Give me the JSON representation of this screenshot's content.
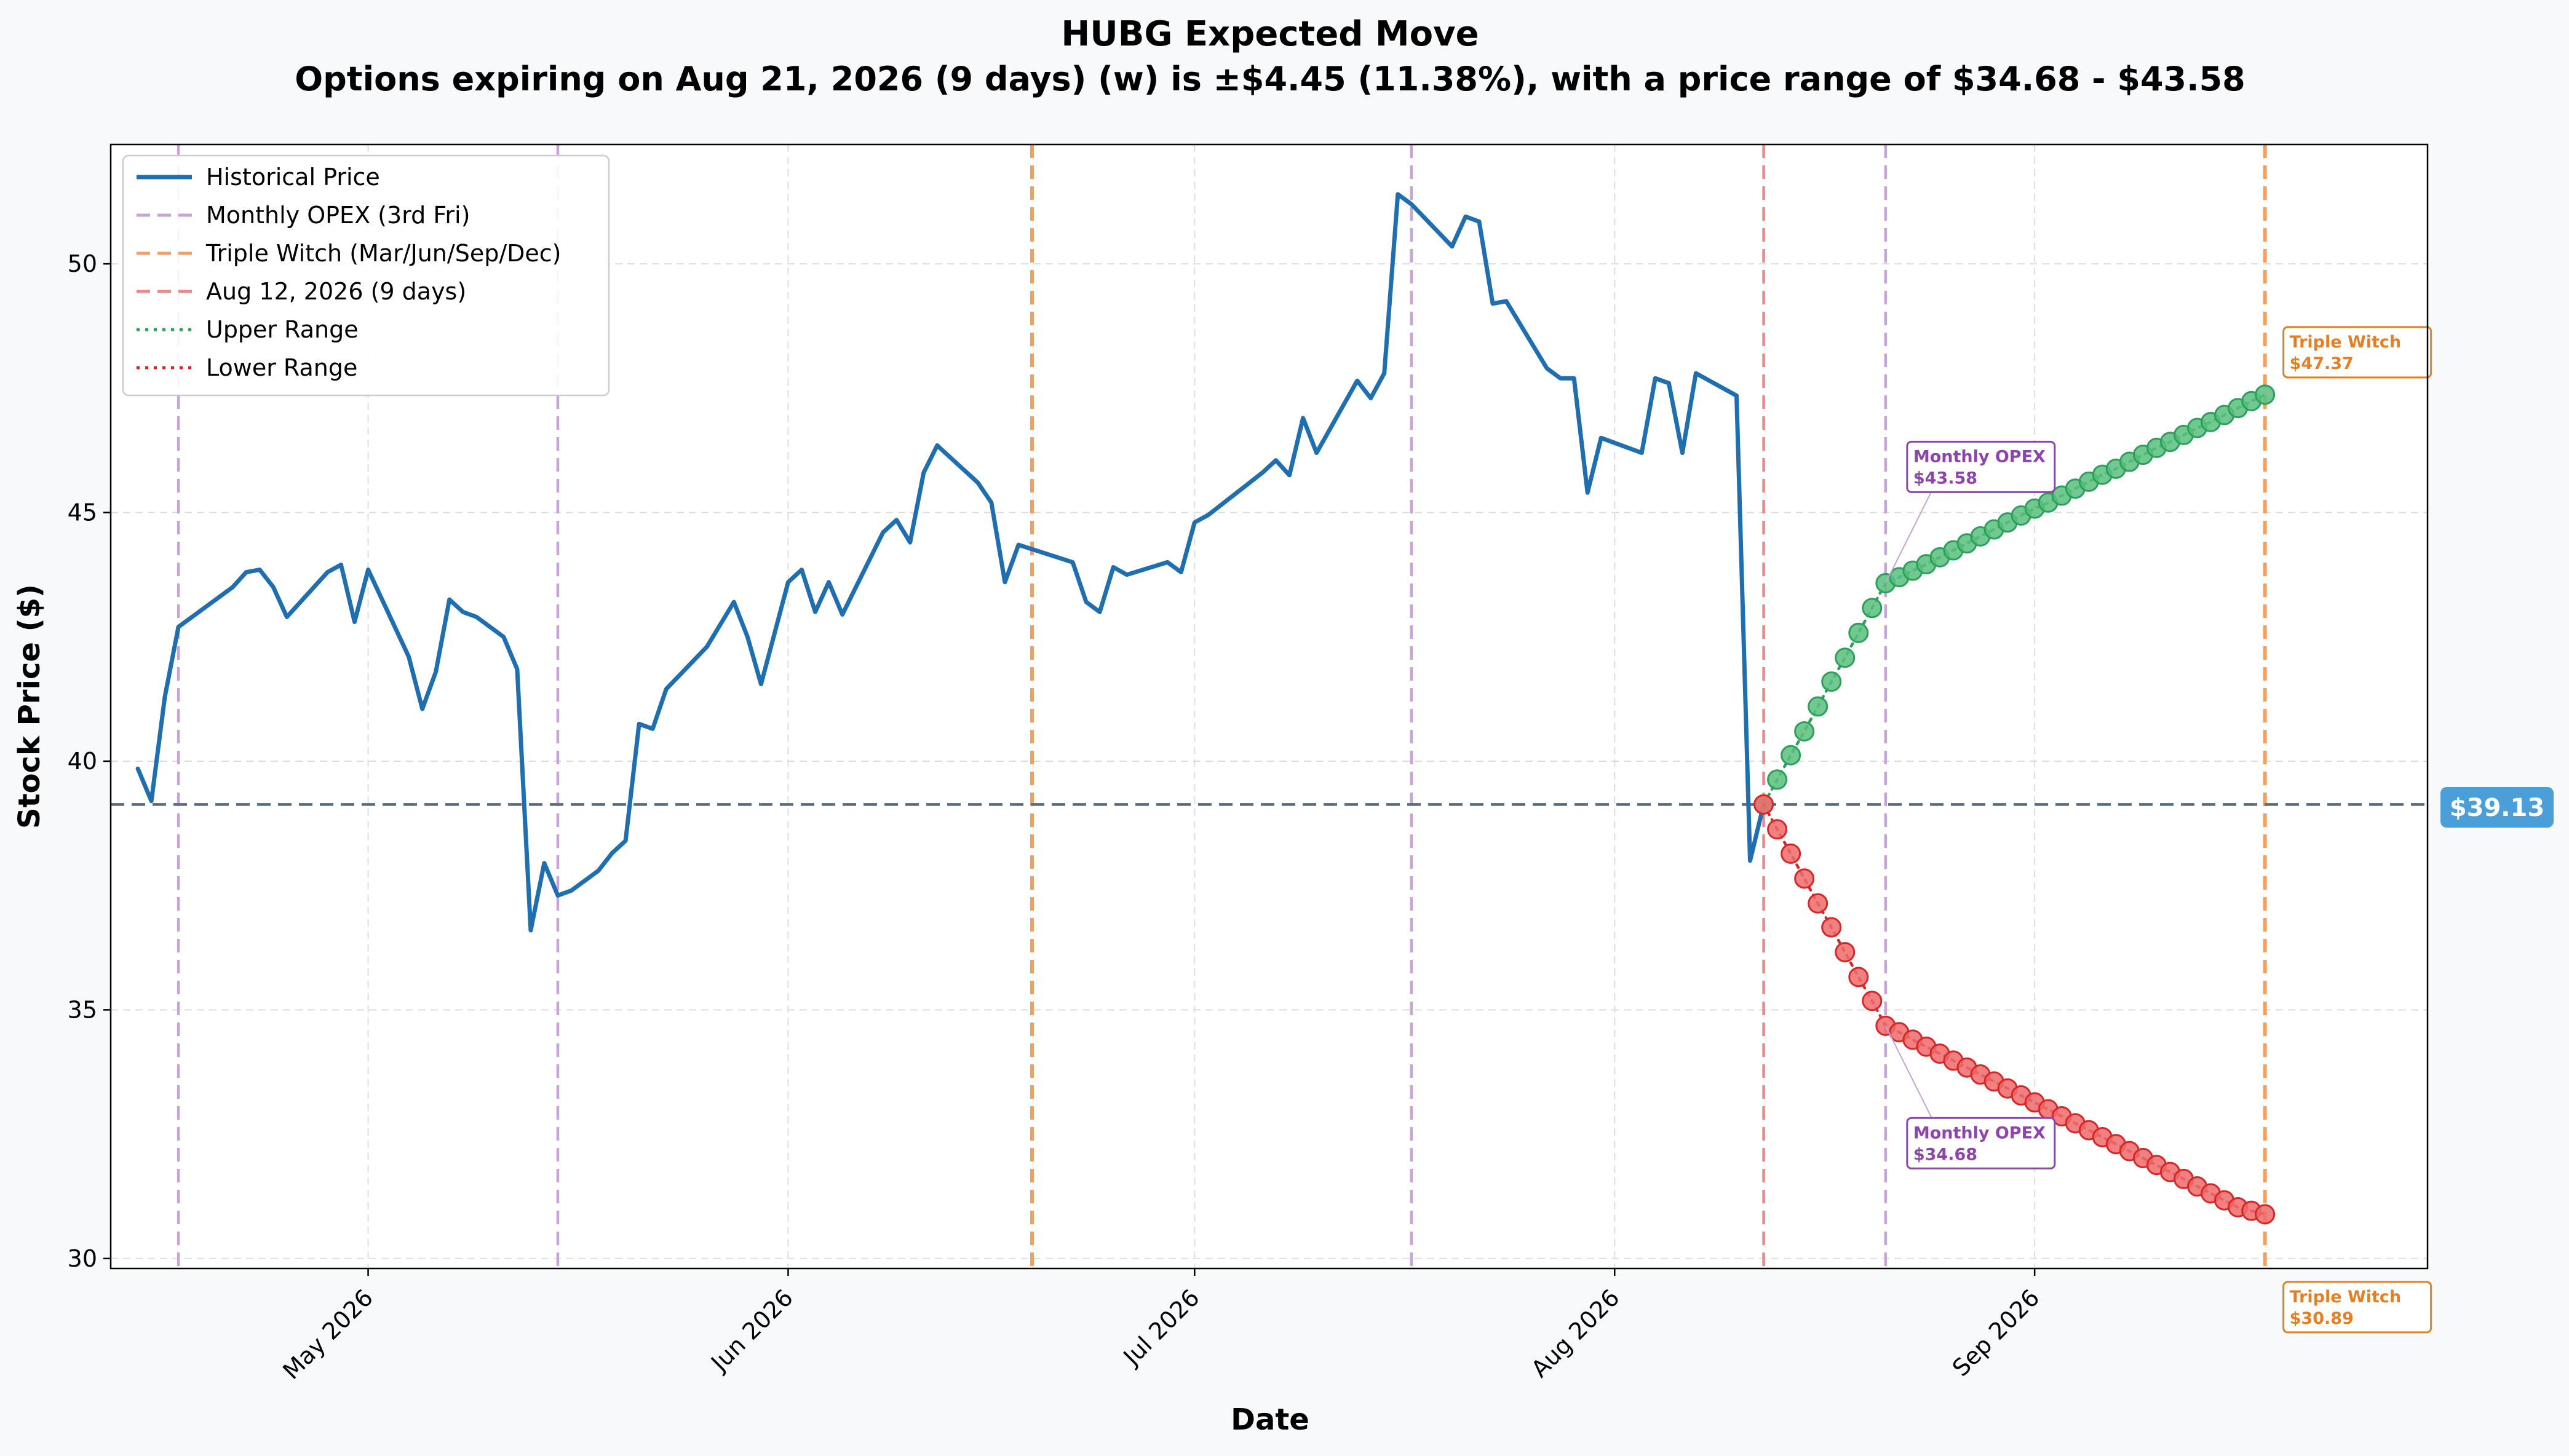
{
  "chart_data": {
    "type": "line",
    "title": "HUBG Expected Move",
    "subtitle": "Options expiring on Aug 21, 2026 (9 days) (w) is ±$4.45 (11.38%), with a price range of $34.68 - $43.58",
    "xlabel": "Date",
    "ylabel": "Stock Price ($)",
    "xlim": [
      "2026-04-12",
      "2026-09-30"
    ],
    "ylim": [
      29.8,
      52.4
    ],
    "grid": true,
    "legend_position": "top-left",
    "x_ticks": [
      {
        "date": "2026-05-01",
        "label": "May 2026"
      },
      {
        "date": "2026-06-01",
        "label": "Jun 2026"
      },
      {
        "date": "2026-07-01",
        "label": "Jul 2026"
      },
      {
        "date": "2026-08-01",
        "label": "Aug 2026"
      },
      {
        "date": "2026-09-01",
        "label": "Sep 2026"
      }
    ],
    "y_ticks": [
      30,
      35,
      40,
      45,
      50
    ],
    "current_price": {
      "value": 39.13,
      "label": "$39.13",
      "color": "#5a6b7d"
    },
    "vertical_lines": [
      {
        "date": "2026-04-17",
        "kind": "monthly",
        "color": "#c8a2d8"
      },
      {
        "date": "2026-05-15",
        "kind": "monthly",
        "color": "#c8a2d8"
      },
      {
        "date": "2026-06-19",
        "kind": "triple",
        "color": "#f0a060"
      },
      {
        "date": "2026-07-17",
        "kind": "monthly",
        "color": "#c8a2d8"
      },
      {
        "date": "2026-08-12",
        "kind": "today",
        "color": "#ee8888"
      },
      {
        "date": "2026-08-21",
        "kind": "monthly",
        "color": "#c8a2d8"
      },
      {
        "date": "2026-09-18",
        "kind": "triple",
        "color": "#f0a060"
      }
    ],
    "series": [
      {
        "name": "Historical Price",
        "style": "solid",
        "color": "#1f6fb0",
        "points": [
          [
            "2026-04-14",
            39.85
          ],
          [
            "2026-04-15",
            39.2
          ],
          [
            "2026-04-16",
            41.3
          ],
          [
            "2026-04-17",
            42.7
          ],
          [
            "2026-04-21",
            43.5
          ],
          [
            "2026-04-22",
            43.8
          ],
          [
            "2026-04-23",
            43.85
          ],
          [
            "2026-04-24",
            43.5
          ],
          [
            "2026-04-25",
            42.9
          ],
          [
            "2026-04-28",
            43.8
          ],
          [
            "2026-04-29",
            43.95
          ],
          [
            "2026-04-30",
            42.8
          ],
          [
            "2026-05-01",
            43.85
          ],
          [
            "2026-05-04",
            42.1
          ],
          [
            "2026-05-05",
            41.05
          ],
          [
            "2026-05-06",
            41.8
          ],
          [
            "2026-05-07",
            43.25
          ],
          [
            "2026-05-08",
            43.0
          ],
          [
            "2026-05-09",
            42.9
          ],
          [
            "2026-05-11",
            42.5
          ],
          [
            "2026-05-12",
            41.85
          ],
          [
            "2026-05-13",
            36.6
          ],
          [
            "2026-05-14",
            37.95
          ],
          [
            "2026-05-15",
            37.3
          ],
          [
            "2026-05-16",
            37.4
          ],
          [
            "2026-05-18",
            37.8
          ],
          [
            "2026-05-19",
            38.15
          ],
          [
            "2026-05-20",
            38.4
          ],
          [
            "2026-05-21",
            40.75
          ],
          [
            "2026-05-22",
            40.65
          ],
          [
            "2026-05-23",
            41.45
          ],
          [
            "2026-05-26",
            42.3
          ],
          [
            "2026-05-27",
            42.75
          ],
          [
            "2026-05-28",
            43.2
          ],
          [
            "2026-05-29",
            42.5
          ],
          [
            "2026-05-30",
            41.55
          ],
          [
            "2026-06-01",
            43.6
          ],
          [
            "2026-06-02",
            43.85
          ],
          [
            "2026-06-03",
            43.0
          ],
          [
            "2026-06-04",
            43.6
          ],
          [
            "2026-06-05",
            42.95
          ],
          [
            "2026-06-08",
            44.6
          ],
          [
            "2026-06-09",
            44.85
          ],
          [
            "2026-06-10",
            44.4
          ],
          [
            "2026-06-11",
            45.8
          ],
          [
            "2026-06-12",
            46.35
          ],
          [
            "2026-06-15",
            45.6
          ],
          [
            "2026-06-16",
            45.2
          ],
          [
            "2026-06-17",
            43.6
          ],
          [
            "2026-06-18",
            44.35
          ],
          [
            "2026-06-22",
            44.0
          ],
          [
            "2026-06-23",
            43.2
          ],
          [
            "2026-06-24",
            43.0
          ],
          [
            "2026-06-25",
            43.9
          ],
          [
            "2026-06-26",
            43.75
          ],
          [
            "2026-06-29",
            44.0
          ],
          [
            "2026-06-30",
            43.8
          ],
          [
            "2026-07-01",
            44.8
          ],
          [
            "2026-07-02",
            44.95
          ],
          [
            "2026-07-06",
            45.8
          ],
          [
            "2026-07-07",
            46.05
          ],
          [
            "2026-07-08",
            45.75
          ],
          [
            "2026-07-09",
            46.9
          ],
          [
            "2026-07-10",
            46.2
          ],
          [
            "2026-07-13",
            47.65
          ],
          [
            "2026-07-14",
            47.3
          ],
          [
            "2026-07-15",
            47.8
          ],
          [
            "2026-07-16",
            51.4
          ],
          [
            "2026-07-17",
            51.2
          ],
          [
            "2026-07-20",
            50.35
          ],
          [
            "2026-07-21",
            50.95
          ],
          [
            "2026-07-22",
            50.85
          ],
          [
            "2026-07-23",
            49.2
          ],
          [
            "2026-07-24",
            49.25
          ],
          [
            "2026-07-27",
            47.9
          ],
          [
            "2026-07-28",
            47.7
          ],
          [
            "2026-07-29",
            47.7
          ],
          [
            "2026-07-30",
            45.4
          ],
          [
            "2026-07-31",
            46.5
          ],
          [
            "2026-08-03",
            46.2
          ],
          [
            "2026-08-04",
            47.7
          ],
          [
            "2026-08-05",
            47.6
          ],
          [
            "2026-08-06",
            46.2
          ],
          [
            "2026-08-07",
            47.8
          ],
          [
            "2026-08-10",
            47.35
          ],
          [
            "2026-08-11",
            38.0
          ],
          [
            "2026-08-12",
            39.13
          ]
        ]
      },
      {
        "name": "Upper Range",
        "style": "dotted",
        "color": "#2ca05a",
        "points": [
          [
            "2026-08-12",
            39.13
          ],
          [
            "2026-08-13",
            39.63
          ],
          [
            "2026-08-14",
            40.12
          ],
          [
            "2026-08-15",
            40.6
          ],
          [
            "2026-08-16",
            41.1
          ],
          [
            "2026-08-17",
            41.6
          ],
          [
            "2026-08-18",
            42.08
          ],
          [
            "2026-08-19",
            42.58
          ],
          [
            "2026-08-20",
            43.08
          ],
          [
            "2026-08-21",
            43.58
          ],
          [
            "2026-08-22",
            43.7
          ],
          [
            "2026-08-23",
            43.83
          ],
          [
            "2026-08-24",
            43.96
          ],
          [
            "2026-08-25",
            44.1
          ],
          [
            "2026-08-26",
            44.24
          ],
          [
            "2026-08-27",
            44.38
          ],
          [
            "2026-08-28",
            44.52
          ],
          [
            "2026-08-29",
            44.66
          ],
          [
            "2026-08-30",
            44.8
          ],
          [
            "2026-08-31",
            44.94
          ],
          [
            "2026-09-01",
            45.08
          ],
          [
            "2026-09-02",
            45.2
          ],
          [
            "2026-09-03",
            45.34
          ],
          [
            "2026-09-04",
            45.48
          ],
          [
            "2026-09-05",
            45.62
          ],
          [
            "2026-09-06",
            45.76
          ],
          [
            "2026-09-07",
            45.88
          ],
          [
            "2026-09-08",
            46.02
          ],
          [
            "2026-09-09",
            46.16
          ],
          [
            "2026-09-10",
            46.3
          ],
          [
            "2026-09-11",
            46.42
          ],
          [
            "2026-09-12",
            46.56
          ],
          [
            "2026-09-13",
            46.7
          ],
          [
            "2026-09-14",
            46.82
          ],
          [
            "2026-09-15",
            46.96
          ],
          [
            "2026-09-16",
            47.1
          ],
          [
            "2026-09-17",
            47.24
          ],
          [
            "2026-09-18",
            47.37
          ]
        ]
      },
      {
        "name": "Lower Range",
        "style": "dotted",
        "color": "#d62728",
        "points": [
          [
            "2026-08-12",
            39.13
          ],
          [
            "2026-08-13",
            38.63
          ],
          [
            "2026-08-14",
            38.14
          ],
          [
            "2026-08-15",
            37.64
          ],
          [
            "2026-08-16",
            37.14
          ],
          [
            "2026-08-17",
            36.66
          ],
          [
            "2026-08-18",
            36.16
          ],
          [
            "2026-08-19",
            35.66
          ],
          [
            "2026-08-20",
            35.18
          ],
          [
            "2026-08-21",
            34.68
          ],
          [
            "2026-08-22",
            34.55
          ],
          [
            "2026-08-23",
            34.4
          ],
          [
            "2026-08-24",
            34.26
          ],
          [
            "2026-08-25",
            34.12
          ],
          [
            "2026-08-26",
            33.98
          ],
          [
            "2026-08-27",
            33.84
          ],
          [
            "2026-08-28",
            33.7
          ],
          [
            "2026-08-29",
            33.56
          ],
          [
            "2026-08-30",
            33.42
          ],
          [
            "2026-08-31",
            33.28
          ],
          [
            "2026-09-01",
            33.14
          ],
          [
            "2026-09-02",
            33.0
          ],
          [
            "2026-09-03",
            32.86
          ],
          [
            "2026-09-04",
            32.72
          ],
          [
            "2026-09-05",
            32.58
          ],
          [
            "2026-09-06",
            32.44
          ],
          [
            "2026-09-07",
            32.3
          ],
          [
            "2026-09-08",
            32.16
          ],
          [
            "2026-09-09",
            32.02
          ],
          [
            "2026-09-10",
            31.88
          ],
          [
            "2026-09-11",
            31.74
          ],
          [
            "2026-09-12",
            31.6
          ],
          [
            "2026-09-13",
            31.45
          ],
          [
            "2026-09-14",
            31.31
          ],
          [
            "2026-09-15",
            31.17
          ],
          [
            "2026-09-16",
            31.03
          ],
          [
            "2026-09-17",
            30.96
          ],
          [
            "2026-09-18",
            30.89
          ]
        ]
      }
    ],
    "legend": [
      {
        "label": "Historical Price",
        "style": "solid",
        "color": "#1f6fb0"
      },
      {
        "label": "Monthly OPEX (3rd Fri)",
        "style": "dashed",
        "color": "#c8a2d8"
      },
      {
        "label": "Triple Witch (Mar/Jun/Sep/Dec)",
        "style": "dashed",
        "color": "#f0a060"
      },
      {
        "label": "Aug 12, 2026 (9 days)",
        "style": "dashed",
        "color": "#ee8888"
      },
      {
        "label": "Upper Range",
        "style": "dotted",
        "color": "#2ca05a"
      },
      {
        "label": "Lower Range",
        "style": "dotted",
        "color": "#d62728"
      }
    ],
    "annotations": [
      {
        "title": "Monthly OPEX",
        "value": "$43.58",
        "point_date": "2026-08-21",
        "point_value": 43.58,
        "color": "#8e44ad",
        "placement": "above-right"
      },
      {
        "title": "Monthly OPEX",
        "value": "$34.68",
        "point_date": "2026-08-21",
        "point_value": 34.68,
        "color": "#8e44ad",
        "placement": "below-right"
      },
      {
        "title": "Triple Witch",
        "value": "$47.37",
        "point_date": "2026-09-18",
        "point_value": 47.37,
        "color": "#e67e22",
        "placement": "above-right"
      },
      {
        "title": "Triple Witch",
        "value": "$30.89",
        "point_date": "2026-09-18",
        "point_value": 30.89,
        "color": "#e67e22",
        "placement": "below-right"
      }
    ]
  }
}
